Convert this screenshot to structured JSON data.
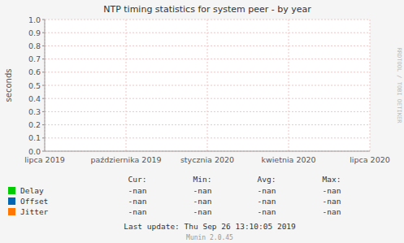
{
  "chart_data": {
    "type": "line",
    "title": "NTP timing statistics for system peer - by year",
    "y_label": "seconds",
    "categories": [
      "lipca 2019",
      "października 2019",
      "stycznia 2020",
      "kwietnia 2020",
      "lipca 2020"
    ],
    "series": [
      {
        "name": "Delay",
        "color": "#00cc00",
        "values": [
          null,
          null,
          null,
          null,
          null
        ],
        "stats": [
          "-nan",
          "-nan",
          "-nan",
          "-nan"
        ]
      },
      {
        "name": "Offset",
        "color": "#0066b3",
        "values": [
          null,
          null,
          null,
          null,
          null
        ],
        "stats": [
          "-nan",
          "-nan",
          "-nan",
          "-nan"
        ]
      },
      {
        "name": "Jitter",
        "color": "#ff7700",
        "values": [
          null,
          null,
          null,
          null,
          null
        ],
        "stats": [
          "-nan",
          "-nan",
          "-nan",
          "-nan"
        ]
      }
    ],
    "stats_headers": [
      "Cur:",
      "Min:",
      "Avg:",
      "Max:"
    ],
    "ylim": [
      0.0,
      1.0
    ],
    "yticks": [
      {
        "value": 0.0,
        "label": "0.0"
      },
      0.1,
      0.2,
      0.3,
      0.4,
      0.5,
      0.6,
      0.7,
      0.8,
      0.9,
      {
        "value": 1.0,
        "label": "1.0"
      }
    ],
    "grid": true,
    "legend": "bottom",
    "annotations": [
      "RRDTOOL / TOBI OETIKER",
      "Last update: Thu Sep 26 13:10:05 2019",
      "Munin 2.0.45"
    ]
  }
}
